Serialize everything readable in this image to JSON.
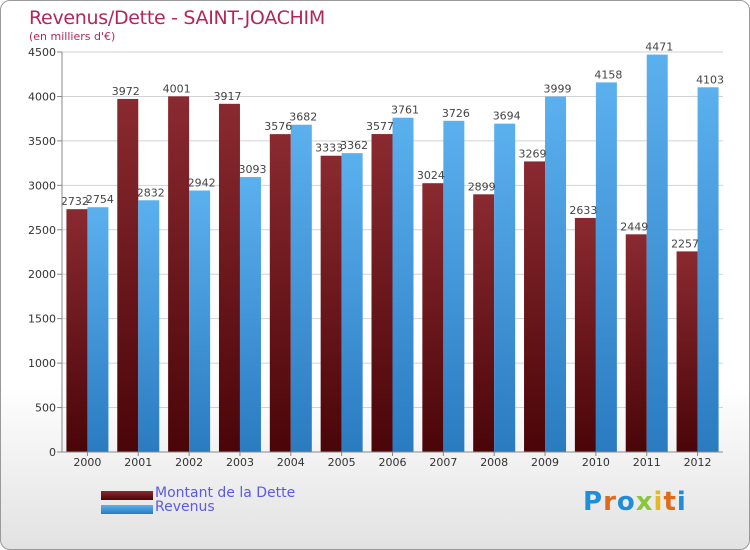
{
  "header": {
    "title": "Revenus/Dette - SAINT-JOACHIM",
    "subtitle": "(en milliers d'€)"
  },
  "legend": {
    "items": [
      {
        "label": "Montant de la Dette",
        "color": "#6b0f12"
      },
      {
        "label": "Revenus",
        "color": "#4ea3e4"
      }
    ]
  },
  "logo": {
    "text": "Proxiti",
    "letters": [
      {
        "char": "P",
        "color": "#1f8ed6"
      },
      {
        "char": "r",
        "color": "#e06a1c"
      },
      {
        "char": "o",
        "color": "#1f8ed6"
      },
      {
        "char": "x",
        "color": "#8cc63f"
      },
      {
        "char": "i",
        "color": "#e6b81f"
      },
      {
        "char": "t",
        "color": "#e06a1c"
      },
      {
        "char": "i",
        "color": "#1f8ed6"
      }
    ]
  },
  "chart_data": {
    "type": "bar",
    "title": "Revenus/Dette - SAINT-JOACHIM",
    "subtitle": "(en milliers d'€)",
    "categories": [
      "2000",
      "2001",
      "2002",
      "2003",
      "2004",
      "2005",
      "2006",
      "2007",
      "2008",
      "2009",
      "2010",
      "2011",
      "2012"
    ],
    "series": [
      {
        "name": "Montant de la Dette",
        "color": "#6b0f12",
        "values": [
          2732,
          3972,
          4001,
          3917,
          3576,
          3333,
          3577,
          3024,
          2899,
          3269,
          2633,
          2449,
          2257
        ],
        "labels": [
          "2732",
          "3972",
          "4001",
          "3917",
          "3576",
          "3333",
          "3577",
          "3024",
          "2899",
          "3269",
          "2633",
          "2449",
          "2257"
        ]
      },
      {
        "name": "Revenus",
        "color": "#4ea3e4",
        "values": [
          2754,
          2832,
          2942,
          3093,
          3682,
          3362,
          3761,
          3726,
          3694,
          3999,
          4158,
          4471,
          4103
        ],
        "labels": [
          "2754",
          "2832",
          "2942",
          "3093",
          "3682",
          "3362",
          "3761",
          "3726",
          "3694",
          "3999",
          "4158",
          "4471",
          "4103"
        ]
      }
    ],
    "ylim": [
      0,
      4500
    ],
    "yticks": [
      0,
      500,
      1000,
      1500,
      2000,
      2500,
      3000,
      3500,
      4000,
      4500
    ],
    "grid": true,
    "legend_position": "bottom-left"
  }
}
